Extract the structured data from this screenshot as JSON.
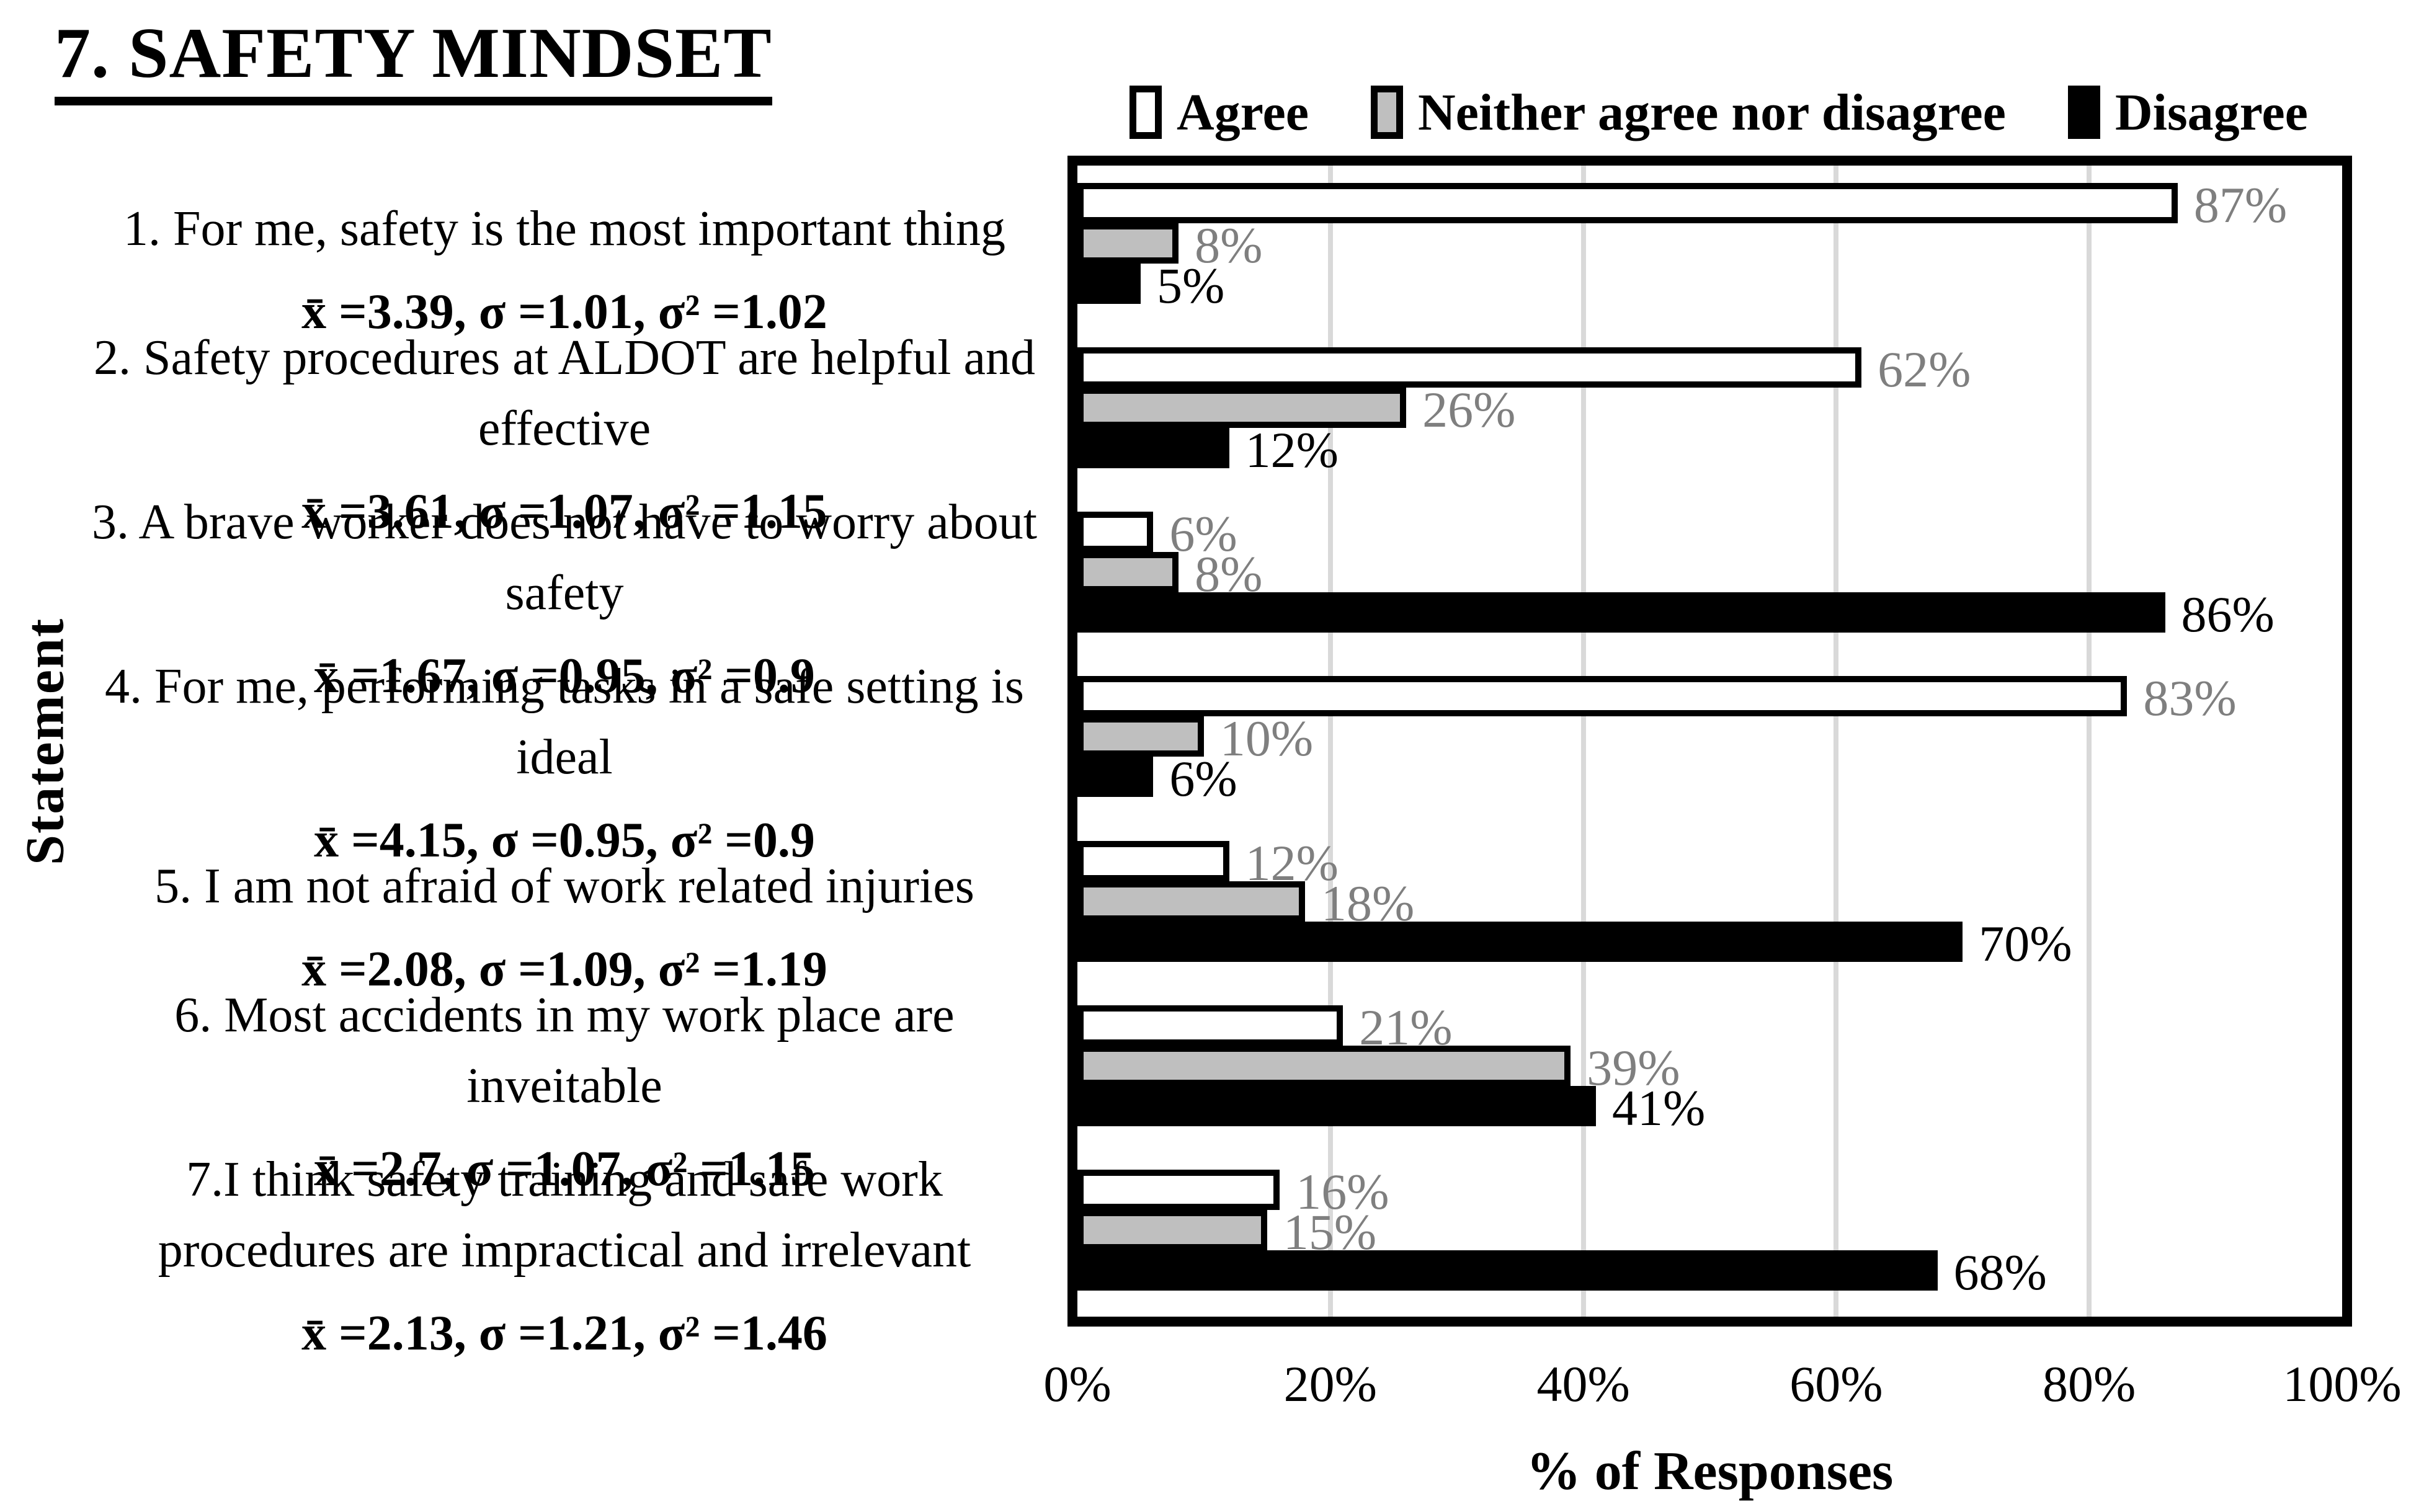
{
  "chart_data": {
    "type": "bar",
    "orientation": "horizontal",
    "title": "7. SAFETY MINDSET",
    "xlabel": "% of Responses",
    "ylabel": "Statement",
    "unit": "%",
    "xlim": [
      0,
      100
    ],
    "x_ticks": [
      "0%",
      "20%",
      "40%",
      "60%",
      "80%",
      "100%"
    ],
    "grid": "vertical",
    "gridline_color": "#D9D9D9",
    "legend_position": "top",
    "categories": [
      {
        "label_lines": [
          "1. For me, safety is the most important thing"
        ],
        "stats": "x̄ =3.39, σ =1.01, σ² =1.02"
      },
      {
        "label_lines": [
          "2. Safety procedures at ALDOT are helpful and",
          "effective"
        ],
        "stats": "x̄ =3.61, σ =1.07, σ² =1.15"
      },
      {
        "label_lines": [
          "3. A brave worker does not have to worry about",
          "safety"
        ],
        "stats": "x̄ =1.67, σ =0.95, σ² =0.9"
      },
      {
        "label_lines": [
          "4. For me, performing tasks in a safe setting is",
          "ideal"
        ],
        "stats": "x̄ =4.15, σ =0.95, σ² =0.9"
      },
      {
        "label_lines": [
          "5. I am not afraid of work related injuries"
        ],
        "stats": "x̄ =2.08, σ =1.09, σ² =1.19"
      },
      {
        "label_lines": [
          "6. Most accidents in my work place are",
          "inveitable"
        ],
        "stats": "x̄ =2.7, σ =1.07, σ² =1.15"
      },
      {
        "label_lines": [
          "7.I think safety training and safe work",
          "procedures are impractical and irrelevant"
        ],
        "stats": "x̄ =2.13, σ =1.21, σ² =1.46"
      }
    ],
    "series": [
      {
        "name": "Agree",
        "fill": "#FFFFFF",
        "border": "#000000",
        "label_color": "#7F7F7F",
        "values": [
          87,
          62,
          6,
          83,
          12,
          21,
          16
        ]
      },
      {
        "name": "Neither agree nor disagree",
        "fill": "#BFBFBF",
        "border": "#000000",
        "label_color": "#7F7F7F",
        "values": [
          8,
          26,
          8,
          10,
          18,
          39,
          15
        ]
      },
      {
        "name": "Disagree",
        "fill": "#000000",
        "border": "#000000",
        "label_color": "#000000",
        "values": [
          5,
          12,
          86,
          6,
          70,
          41,
          68
        ]
      }
    ]
  }
}
